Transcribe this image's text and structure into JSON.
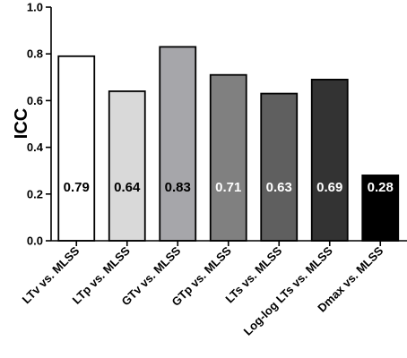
{
  "chart_data": {
    "type": "bar",
    "title": "",
    "xlabel": "",
    "ylabel": "ICC",
    "ylim": [
      0,
      1.0
    ],
    "yticks": [
      0.0,
      0.2,
      0.4,
      0.6,
      0.8,
      1.0
    ],
    "ytick_labels": [
      "0.0",
      "0.2",
      "0.4",
      "0.6",
      "0.8",
      "1.0"
    ],
    "grid": false,
    "categories": [
      "LTv vs. MLSS",
      "LTp  vs. MLSS",
      "GTv vs. MLSS",
      "GTp vs. MLSS",
      "LTs vs. MLSS",
      "Log-log LTs vs. MLSS",
      "Dmax vs. MLSS"
    ],
    "values": [
      0.79,
      0.64,
      0.83,
      0.71,
      0.63,
      0.69,
      0.28
    ],
    "data_labels": [
      "0.79",
      "0.64",
      "0.83",
      "0.71",
      "0.63",
      "0.69",
      "0.28"
    ],
    "bar_colors": [
      "#ffffff",
      "#d9d9d9",
      "#a6a6aa",
      "#808080",
      "#5f5f5f",
      "#333333",
      "#000000"
    ],
    "label_colors": [
      "#000000",
      "#000000",
      "#000000",
      "#ffffff",
      "#ffffff",
      "#ffffff",
      "#ffffff"
    ]
  }
}
